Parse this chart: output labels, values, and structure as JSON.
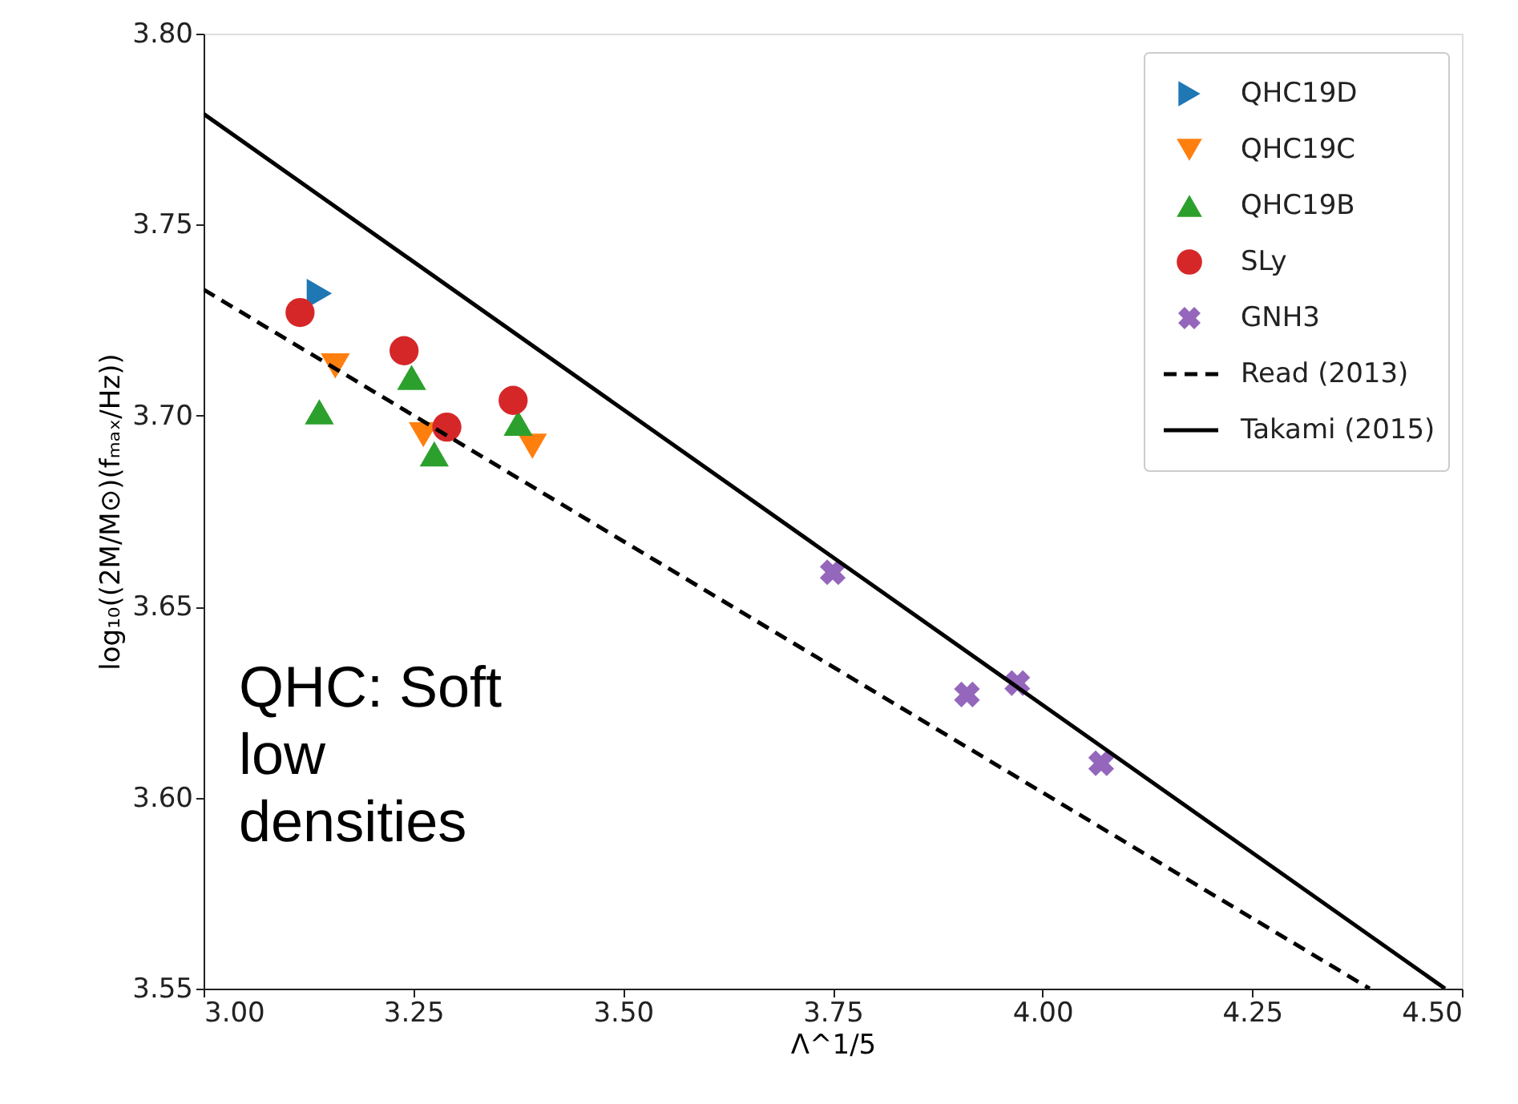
{
  "chart_data": {
    "type": "scatter",
    "xlabel": "Λ^1/5",
    "ylabel": "log₁₀((2M/M⊙)(fₘₐₓ/Hz))",
    "xlim": [
      3.0,
      4.5
    ],
    "xticks": [
      {
        "value": 3.0,
        "label": "3.00"
      },
      {
        "value": 3.25,
        "label": "3.25"
      },
      {
        "value": 3.5,
        "label": "3.50"
      },
      {
        "value": 3.75,
        "label": "3.75"
      },
      {
        "value": 4.0,
        "label": "4.00"
      },
      {
        "value": 4.25,
        "label": "4.25"
      },
      {
        "value": 4.5,
        "label": "4.50"
      }
    ],
    "ylim": [
      3.55,
      3.8
    ],
    "yticks": [
      {
        "value": 3.55,
        "label": "3.55"
      },
      {
        "value": 3.6,
        "label": "3.60"
      },
      {
        "value": 3.65,
        "label": "3.65"
      },
      {
        "value": 3.7,
        "label": "3.70"
      },
      {
        "value": 3.75,
        "label": "3.75"
      },
      {
        "value": 3.8,
        "label": "3.80"
      }
    ],
    "grid": false,
    "legend": "top right",
    "series": [
      {
        "name": "QHC19D",
        "color": "#1f77b4",
        "marker": "triangle-right",
        "x": [
          3.138
        ],
        "values": [
          3.732
        ]
      },
      {
        "name": "QHC19C",
        "color": "#ff7f0e",
        "marker": "triangle-down",
        "x": [
          3.157,
          3.262,
          3.392
        ],
        "values": [
          3.713,
          3.695,
          3.692
        ]
      },
      {
        "name": "QHC19B",
        "color": "#2ca02c",
        "marker": "triangle",
        "x": [
          3.138,
          3.248,
          3.275,
          3.375
        ],
        "values": [
          3.701,
          3.71,
          3.69,
          3.698
        ]
      },
      {
        "name": "SLy",
        "color": "#d62728",
        "marker": "circle",
        "x": [
          3.115,
          3.239,
          3.29,
          3.369
        ],
        "values": [
          3.727,
          3.717,
          3.697,
          3.704
        ]
      },
      {
        "name": "GNH3",
        "color": "#9467bd",
        "marker": "cross",
        "x": [
          3.75,
          3.91,
          3.97,
          4.07
        ],
        "values": [
          3.659,
          3.627,
          3.63,
          3.609
        ]
      },
      {
        "name": "Read (2013)",
        "type": "line",
        "color": "#000000",
        "line_style": "dashed",
        "x": [
          3.0,
          4.39
        ],
        "values": [
          3.733,
          3.55
        ]
      },
      {
        "name": "Takami (2015)",
        "type": "line",
        "color": "#000000",
        "line_style": "solid",
        "x": [
          3.0,
          4.48
        ],
        "values": [
          3.779,
          3.55
        ]
      }
    ],
    "annotations": [
      "QHC: Soft\nlow\ndensities"
    ]
  }
}
